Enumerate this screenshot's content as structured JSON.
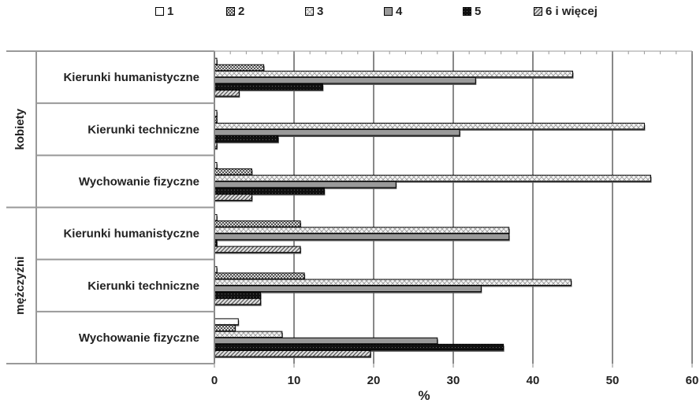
{
  "chart_data": {
    "type": "bar",
    "orientation": "horizontal",
    "xlabel": "%",
    "xlim": [
      0,
      60
    ],
    "xticks": [
      "0",
      "10",
      "20",
      "30",
      "40",
      "50",
      "60"
    ],
    "grid": true,
    "legend_position": "top",
    "groups": [
      {
        "label": "kobiety",
        "categories": [
          "Kierunki humanistyczne",
          "Kierunki techniczne",
          "Wychowanie fizyczne"
        ]
      },
      {
        "label": "mężczyźni",
        "categories": [
          "Kierunki humanistyczne",
          "Kierunki techniczne",
          "Wychowanie fizyczne"
        ]
      }
    ],
    "categories": [
      "Kierunki humanistyczne",
      "Kierunki techniczne",
      "Wychowanie fizyczne",
      "Kierunki humanistyczne",
      "Kierunki techniczne",
      "Wychowanie fizyczne"
    ],
    "series": [
      {
        "name": "1",
        "values": [
          0.3,
          0.3,
          0.3,
          0.3,
          0.3,
          3.0
        ]
      },
      {
        "name": "2",
        "values": [
          6.2,
          0.3,
          4.7,
          10.8,
          11.3,
          2.6
        ]
      },
      {
        "name": "3",
        "values": [
          45.0,
          54.0,
          54.8,
          37.0,
          44.8,
          8.5
        ]
      },
      {
        "name": "4",
        "values": [
          32.8,
          30.8,
          22.8,
          37.0,
          33.5,
          28.0
        ]
      },
      {
        "name": "5",
        "values": [
          13.6,
          8.0,
          13.8,
          0.3,
          5.8,
          36.3
        ]
      },
      {
        "name": "6 i więcej",
        "values": [
          3.1,
          0.3,
          4.7,
          10.8,
          5.8,
          19.6
        ]
      }
    ],
    "colors": {
      "1": "#ffffff",
      "2": "#8a8a8a",
      "3": "#e8e8e8",
      "4": "#9a9a9a",
      "5": "#111111",
      "6 i więcej": "#7a7a7a"
    }
  }
}
